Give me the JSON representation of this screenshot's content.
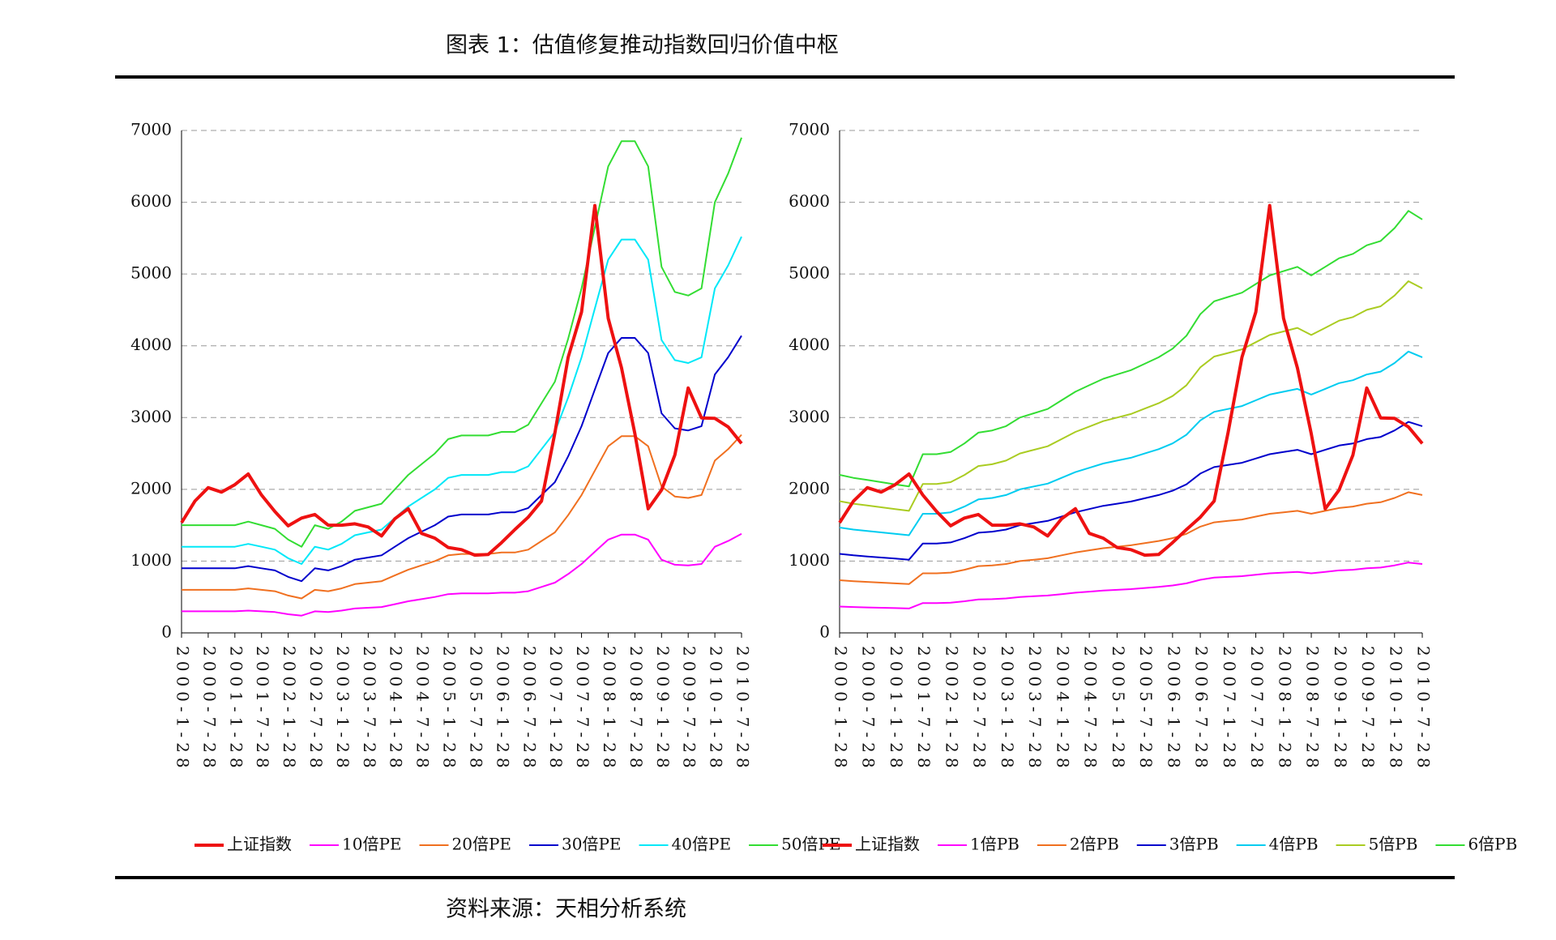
{
  "header": {
    "title": "图表 1：估值修复推动指数回归价值中枢"
  },
  "footer": {
    "source": "资料来源：天相分析系统"
  },
  "chart_data": [
    {
      "type": "line",
      "grid": true,
      "ylim": [
        0,
        7000
      ],
      "yticks": [
        0,
        1000,
        2000,
        3000,
        4000,
        5000,
        6000,
        7000
      ],
      "categories": [
        "2000-1-28",
        null,
        "2000-7-28",
        null,
        "2001-1-28",
        null,
        "2001-7-28",
        null,
        "2002-1-28",
        null,
        "2002-7-28",
        null,
        "2003-1-28",
        null,
        "2003-7-28",
        null,
        "2004-1-28",
        null,
        "2004-7-28",
        null,
        "2005-1-28",
        null,
        "2005-7-28",
        null,
        "2006-1-28",
        null,
        "2006-7-28",
        null,
        "2007-1-28",
        null,
        "2007-7-28",
        null,
        "2008-1-28",
        null,
        "2008-7-28",
        null,
        "2009-1-28",
        null,
        "2009-7-28",
        null,
        "2010-1-28",
        null,
        "2010-7-28"
      ],
      "series": [
        {
          "name": "10倍PE",
          "color": "#ff00ff",
          "values": [
            300,
            300,
            300,
            300,
            300,
            310,
            300,
            290,
            260,
            240,
            300,
            290,
            310,
            340,
            350,
            360,
            400,
            440,
            470,
            500,
            540,
            550,
            550,
            550,
            560,
            560,
            580,
            640,
            700,
            820,
            960,
            1130,
            1300,
            1370,
            1370,
            1300,
            1020,
            950,
            940,
            960,
            1200,
            1280,
            1380
          ]
        },
        {
          "name": "20倍PE",
          "color": "#f07020",
          "values": [
            600,
            600,
            600,
            600,
            600,
            620,
            600,
            580,
            520,
            480,
            600,
            580,
            620,
            680,
            700,
            720,
            800,
            880,
            940,
            1000,
            1080,
            1100,
            1100,
            1100,
            1120,
            1120,
            1160,
            1280,
            1400,
            1640,
            1920,
            2260,
            2600,
            2740,
            2740,
            2600,
            2040,
            1900,
            1880,
            1920,
            2400,
            2560,
            2760
          ]
        },
        {
          "name": "30倍PE",
          "color": "#0000cc",
          "values": [
            900,
            900,
            900,
            900,
            900,
            930,
            900,
            870,
            780,
            720,
            900,
            870,
            930,
            1020,
            1050,
            1080,
            1200,
            1320,
            1410,
            1500,
            1620,
            1650,
            1650,
            1650,
            1680,
            1680,
            1740,
            1920,
            2100,
            2460,
            2880,
            3390,
            3900,
            4110,
            4110,
            3900,
            3060,
            2850,
            2820,
            2880,
            3600,
            3840,
            4140
          ]
        },
        {
          "name": "40倍PE",
          "color": "#00e8f8",
          "values": [
            1200,
            1200,
            1200,
            1200,
            1200,
            1240,
            1200,
            1160,
            1040,
            960,
            1200,
            1160,
            1240,
            1360,
            1400,
            1440,
            1600,
            1760,
            1880,
            2000,
            2160,
            2200,
            2200,
            2200,
            2240,
            2240,
            2320,
            2560,
            2800,
            3280,
            3840,
            4520,
            5200,
            5480,
            5480,
            5200,
            4080,
            3800,
            3760,
            3840,
            4800,
            5120,
            5520
          ]
        },
        {
          "name": "50倍PE",
          "color": "#33dd33",
          "values": [
            1500,
            1500,
            1500,
            1500,
            1500,
            1550,
            1500,
            1450,
            1300,
            1200,
            1500,
            1450,
            1550,
            1700,
            1750,
            1800,
            2000,
            2200,
            2350,
            2500,
            2700,
            2750,
            2750,
            2750,
            2800,
            2800,
            2900,
            3200,
            3500,
            4100,
            4800,
            5650,
            6500,
            6850,
            6850,
            6500,
            5100,
            4750,
            4700,
            4800,
            6000,
            6400,
            6900
          ]
        },
        {
          "name": "上证指数",
          "color": "#ee1111",
          "width": 4,
          "values": [
            1535,
            1836,
            2023,
            1961,
            2065,
            2214,
            1920,
            1690,
            1491,
            1600,
            1650,
            1500,
            1500,
            1520,
            1476,
            1350,
            1590,
            1730,
            1386,
            1320,
            1190,
            1160,
            1083,
            1092,
            1258,
            1440,
            1612,
            1837,
            2786,
            3841,
            4471,
            5954,
            4383,
            3693,
            2775,
            1729,
            1991,
            2477,
            3412,
            2995,
            2989,
            2870,
            2638
          ]
        }
      ],
      "legend_order": [
        5,
        0,
        1,
        2,
        3,
        4
      ]
    },
    {
      "type": "line",
      "grid": true,
      "ylim": [
        0,
        7000
      ],
      "yticks": [
        0,
        1000,
        2000,
        3000,
        4000,
        5000,
        6000,
        7000
      ],
      "categories": [
        "2000-1-28",
        null,
        "2000-7-28",
        null,
        "2001-1-28",
        null,
        "2001-7-28",
        null,
        "2002-1-28",
        null,
        "2002-7-28",
        null,
        "2003-1-28",
        null,
        "2003-7-28",
        null,
        "2004-1-28",
        null,
        "2004-7-28",
        null,
        "2005-1-28",
        null,
        "2005-7-28",
        null,
        "2006-1-28",
        null,
        "2006-7-28",
        null,
        "2007-1-28",
        null,
        "2007-7-28",
        null,
        "2008-1-28",
        null,
        "2008-7-28",
        null,
        "2009-1-28",
        null,
        "2009-7-28",
        null,
        "2010-1-28",
        null,
        "2010-7-28"
      ],
      "series": [
        {
          "name": "1倍PB",
          "color": "#ff00ff",
          "values": [
            367,
            360,
            355,
            350,
            345,
            340,
            415,
            415,
            420,
            440,
            465,
            470,
            480,
            500,
            510,
            520,
            540,
            560,
            575,
            590,
            600,
            610,
            625,
            640,
            660,
            690,
            740,
            770,
            780,
            790,
            810,
            830,
            840,
            850,
            830,
            850,
            870,
            880,
            900,
            910,
            940,
            980,
            960
          ]
        },
        {
          "name": "2倍PB",
          "color": "#f07020",
          "values": [
            734,
            720,
            710,
            700,
            690,
            680,
            830,
            830,
            840,
            880,
            930,
            940,
            960,
            1000,
            1020,
            1040,
            1080,
            1120,
            1150,
            1180,
            1200,
            1220,
            1250,
            1280,
            1320,
            1380,
            1480,
            1540,
            1560,
            1580,
            1620,
            1660,
            1680,
            1700,
            1660,
            1700,
            1740,
            1760,
            1800,
            1820,
            1880,
            1960,
            1920
          ]
        },
        {
          "name": "3倍PB",
          "color": "#0000cc",
          "values": [
            1101,
            1080,
            1065,
            1050,
            1035,
            1020,
            1245,
            1245,
            1260,
            1320,
            1395,
            1410,
            1440,
            1500,
            1530,
            1560,
            1620,
            1680,
            1725,
            1770,
            1800,
            1830,
            1875,
            1920,
            1980,
            2070,
            2220,
            2310,
            2340,
            2370,
            2430,
            2490,
            2520,
            2550,
            2490,
            2550,
            2610,
            2640,
            2700,
            2730,
            2820,
            2940,
            2880
          ]
        },
        {
          "name": "4倍PB",
          "color": "#00ccf0",
          "values": [
            1468,
            1440,
            1420,
            1400,
            1380,
            1360,
            1660,
            1660,
            1680,
            1760,
            1860,
            1880,
            1920,
            2000,
            2040,
            2080,
            2160,
            2240,
            2300,
            2360,
            2400,
            2440,
            2500,
            2560,
            2640,
            2760,
            2960,
            3080,
            3120,
            3160,
            3240,
            3320,
            3360,
            3400,
            3320,
            3400,
            3480,
            3520,
            3600,
            3640,
            3760,
            3920,
            3840
          ]
        },
        {
          "name": "5倍PB",
          "color": "#aacc22",
          "values": [
            1835,
            1800,
            1775,
            1750,
            1725,
            1700,
            2075,
            2075,
            2100,
            2200,
            2325,
            2350,
            2400,
            2500,
            2550,
            2600,
            2700,
            2800,
            2875,
            2950,
            3000,
            3050,
            3125,
            3200,
            3300,
            3450,
            3700,
            3850,
            3900,
            3950,
            4050,
            4150,
            4200,
            4250,
            4150,
            4250,
            4350,
            4400,
            4500,
            4550,
            4700,
            4900,
            4800
          ]
        },
        {
          "name": "6倍PB",
          "color": "#33dd33",
          "values": [
            2202,
            2160,
            2130,
            2100,
            2070,
            2040,
            2490,
            2490,
            2520,
            2640,
            2790,
            2820,
            2880,
            3000,
            3060,
            3120,
            3240,
            3360,
            3450,
            3540,
            3600,
            3660,
            3750,
            3840,
            3960,
            4140,
            4440,
            4620,
            4680,
            4740,
            4860,
            4980,
            5040,
            5100,
            4980,
            5100,
            5220,
            5280,
            5400,
            5460,
            5640,
            5880,
            5760
          ]
        },
        {
          "name": "上证指数",
          "color": "#ee1111",
          "width": 4,
          "values": [
            1535,
            1836,
            2023,
            1961,
            2065,
            2214,
            1920,
            1690,
            1491,
            1600,
            1650,
            1500,
            1500,
            1520,
            1476,
            1350,
            1590,
            1730,
            1386,
            1320,
            1190,
            1160,
            1083,
            1092,
            1258,
            1440,
            1612,
            1837,
            2786,
            3841,
            4471,
            5954,
            4383,
            3693,
            2775,
            1729,
            1991,
            2477,
            3412,
            2995,
            2989,
            2870,
            2638
          ]
        }
      ],
      "legend_order": [
        6,
        0,
        1,
        2,
        3,
        4,
        5
      ]
    }
  ]
}
